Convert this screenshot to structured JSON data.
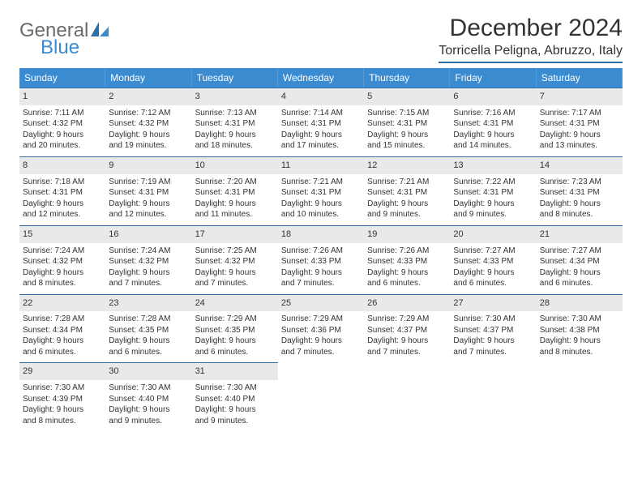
{
  "logo": {
    "text1": "General",
    "text2": "Blue"
  },
  "title": "December 2024",
  "location": "Torricella Peligna, Abruzzo, Italy",
  "colors": {
    "header_bg": "#3b8bd0",
    "header_fg": "#ffffff",
    "daynum_bg": "#e9e9e9",
    "border": "#2f6fa7",
    "text": "#333333",
    "logo_grey": "#6b6b6b",
    "logo_blue": "#3b8bd0"
  },
  "dow": [
    "Sunday",
    "Monday",
    "Tuesday",
    "Wednesday",
    "Thursday",
    "Friday",
    "Saturday"
  ],
  "days": [
    {
      "n": "1",
      "sr": "Sunrise: 7:11 AM",
      "ss": "Sunset: 4:32 PM",
      "dl1": "Daylight: 9 hours",
      "dl2": "and 20 minutes."
    },
    {
      "n": "2",
      "sr": "Sunrise: 7:12 AM",
      "ss": "Sunset: 4:32 PM",
      "dl1": "Daylight: 9 hours",
      "dl2": "and 19 minutes."
    },
    {
      "n": "3",
      "sr": "Sunrise: 7:13 AM",
      "ss": "Sunset: 4:31 PM",
      "dl1": "Daylight: 9 hours",
      "dl2": "and 18 minutes."
    },
    {
      "n": "4",
      "sr": "Sunrise: 7:14 AM",
      "ss": "Sunset: 4:31 PM",
      "dl1": "Daylight: 9 hours",
      "dl2": "and 17 minutes."
    },
    {
      "n": "5",
      "sr": "Sunrise: 7:15 AM",
      "ss": "Sunset: 4:31 PM",
      "dl1": "Daylight: 9 hours",
      "dl2": "and 15 minutes."
    },
    {
      "n": "6",
      "sr": "Sunrise: 7:16 AM",
      "ss": "Sunset: 4:31 PM",
      "dl1": "Daylight: 9 hours",
      "dl2": "and 14 minutes."
    },
    {
      "n": "7",
      "sr": "Sunrise: 7:17 AM",
      "ss": "Sunset: 4:31 PM",
      "dl1": "Daylight: 9 hours",
      "dl2": "and 13 minutes."
    },
    {
      "n": "8",
      "sr": "Sunrise: 7:18 AM",
      "ss": "Sunset: 4:31 PM",
      "dl1": "Daylight: 9 hours",
      "dl2": "and 12 minutes."
    },
    {
      "n": "9",
      "sr": "Sunrise: 7:19 AM",
      "ss": "Sunset: 4:31 PM",
      "dl1": "Daylight: 9 hours",
      "dl2": "and 12 minutes."
    },
    {
      "n": "10",
      "sr": "Sunrise: 7:20 AM",
      "ss": "Sunset: 4:31 PM",
      "dl1": "Daylight: 9 hours",
      "dl2": "and 11 minutes."
    },
    {
      "n": "11",
      "sr": "Sunrise: 7:21 AM",
      "ss": "Sunset: 4:31 PM",
      "dl1": "Daylight: 9 hours",
      "dl2": "and 10 minutes."
    },
    {
      "n": "12",
      "sr": "Sunrise: 7:21 AM",
      "ss": "Sunset: 4:31 PM",
      "dl1": "Daylight: 9 hours",
      "dl2": "and 9 minutes."
    },
    {
      "n": "13",
      "sr": "Sunrise: 7:22 AM",
      "ss": "Sunset: 4:31 PM",
      "dl1": "Daylight: 9 hours",
      "dl2": "and 9 minutes."
    },
    {
      "n": "14",
      "sr": "Sunrise: 7:23 AM",
      "ss": "Sunset: 4:31 PM",
      "dl1": "Daylight: 9 hours",
      "dl2": "and 8 minutes."
    },
    {
      "n": "15",
      "sr": "Sunrise: 7:24 AM",
      "ss": "Sunset: 4:32 PM",
      "dl1": "Daylight: 9 hours",
      "dl2": "and 8 minutes."
    },
    {
      "n": "16",
      "sr": "Sunrise: 7:24 AM",
      "ss": "Sunset: 4:32 PM",
      "dl1": "Daylight: 9 hours",
      "dl2": "and 7 minutes."
    },
    {
      "n": "17",
      "sr": "Sunrise: 7:25 AM",
      "ss": "Sunset: 4:32 PM",
      "dl1": "Daylight: 9 hours",
      "dl2": "and 7 minutes."
    },
    {
      "n": "18",
      "sr": "Sunrise: 7:26 AM",
      "ss": "Sunset: 4:33 PM",
      "dl1": "Daylight: 9 hours",
      "dl2": "and 7 minutes."
    },
    {
      "n": "19",
      "sr": "Sunrise: 7:26 AM",
      "ss": "Sunset: 4:33 PM",
      "dl1": "Daylight: 9 hours",
      "dl2": "and 6 minutes."
    },
    {
      "n": "20",
      "sr": "Sunrise: 7:27 AM",
      "ss": "Sunset: 4:33 PM",
      "dl1": "Daylight: 9 hours",
      "dl2": "and 6 minutes."
    },
    {
      "n": "21",
      "sr": "Sunrise: 7:27 AM",
      "ss": "Sunset: 4:34 PM",
      "dl1": "Daylight: 9 hours",
      "dl2": "and 6 minutes."
    },
    {
      "n": "22",
      "sr": "Sunrise: 7:28 AM",
      "ss": "Sunset: 4:34 PM",
      "dl1": "Daylight: 9 hours",
      "dl2": "and 6 minutes."
    },
    {
      "n": "23",
      "sr": "Sunrise: 7:28 AM",
      "ss": "Sunset: 4:35 PM",
      "dl1": "Daylight: 9 hours",
      "dl2": "and 6 minutes."
    },
    {
      "n": "24",
      "sr": "Sunrise: 7:29 AM",
      "ss": "Sunset: 4:35 PM",
      "dl1": "Daylight: 9 hours",
      "dl2": "and 6 minutes."
    },
    {
      "n": "25",
      "sr": "Sunrise: 7:29 AM",
      "ss": "Sunset: 4:36 PM",
      "dl1": "Daylight: 9 hours",
      "dl2": "and 7 minutes."
    },
    {
      "n": "26",
      "sr": "Sunrise: 7:29 AM",
      "ss": "Sunset: 4:37 PM",
      "dl1": "Daylight: 9 hours",
      "dl2": "and 7 minutes."
    },
    {
      "n": "27",
      "sr": "Sunrise: 7:30 AM",
      "ss": "Sunset: 4:37 PM",
      "dl1": "Daylight: 9 hours",
      "dl2": "and 7 minutes."
    },
    {
      "n": "28",
      "sr": "Sunrise: 7:30 AM",
      "ss": "Sunset: 4:38 PM",
      "dl1": "Daylight: 9 hours",
      "dl2": "and 8 minutes."
    },
    {
      "n": "29",
      "sr": "Sunrise: 7:30 AM",
      "ss": "Sunset: 4:39 PM",
      "dl1": "Daylight: 9 hours",
      "dl2": "and 8 minutes."
    },
    {
      "n": "30",
      "sr": "Sunrise: 7:30 AM",
      "ss": "Sunset: 4:40 PM",
      "dl1": "Daylight: 9 hours",
      "dl2": "and 9 minutes."
    },
    {
      "n": "31",
      "sr": "Sunrise: 7:30 AM",
      "ss": "Sunset: 4:40 PM",
      "dl1": "Daylight: 9 hours",
      "dl2": "and 9 minutes."
    }
  ]
}
